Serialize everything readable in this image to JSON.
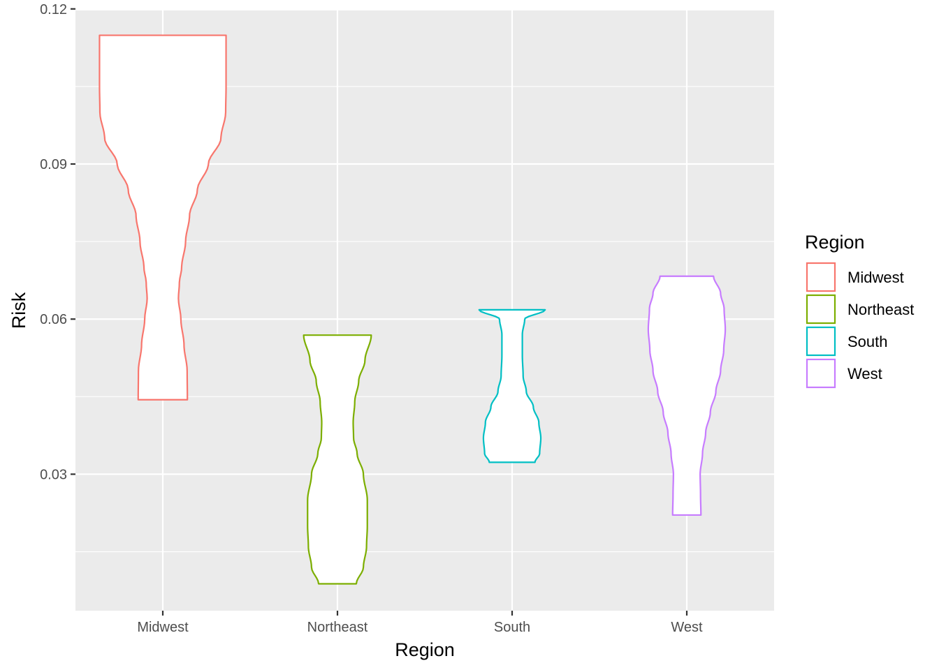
{
  "chart_data": {
    "type": "violin",
    "xlabel": "Region",
    "ylabel": "Risk",
    "ylim": [
      0.0036,
      0.1197
    ],
    "y_ticks": [
      0.03,
      0.06,
      0.09,
      0.12
    ],
    "y_tick_labels": [
      "0.03",
      "0.06",
      "0.09",
      "0.12"
    ],
    "categories": [
      "Midwest",
      "Northeast",
      "South",
      "West"
    ],
    "grid": true,
    "legend": {
      "title": "Region",
      "position": "right"
    },
    "series": [
      {
        "name": "Midwest",
        "color": "#F8766D",
        "min": 0.0444,
        "max": 0.1149,
        "profile": [
          [
            0.0444,
            0.313
          ],
          [
            0.05,
            0.31
          ],
          [
            0.055,
            0.27
          ],
          [
            0.06,
            0.23
          ],
          [
            0.064,
            0.199
          ],
          [
            0.067,
            0.211
          ],
          [
            0.07,
            0.24
          ],
          [
            0.075,
            0.29
          ],
          [
            0.08,
            0.34
          ],
          [
            0.085,
            0.44
          ],
          [
            0.09,
            0.58
          ],
          [
            0.095,
            0.74
          ],
          [
            0.1,
            0.8
          ],
          [
            0.105,
            0.805
          ],
          [
            0.11,
            0.805
          ],
          [
            0.1149,
            0.805
          ]
        ]
      },
      {
        "name": "Northeast",
        "color": "#7CAE00",
        "min": 0.0088,
        "max": 0.0569,
        "profile": [
          [
            0.0088,
            0.24
          ],
          [
            0.012,
            0.33
          ],
          [
            0.016,
            0.37
          ],
          [
            0.02,
            0.38
          ],
          [
            0.025,
            0.38
          ],
          [
            0.03,
            0.33
          ],
          [
            0.034,
            0.25
          ],
          [
            0.037,
            0.205
          ],
          [
            0.04,
            0.2
          ],
          [
            0.044,
            0.22
          ],
          [
            0.048,
            0.27
          ],
          [
            0.052,
            0.35
          ],
          [
            0.0569,
            0.43
          ]
        ]
      },
      {
        "name": "South",
        "color": "#00BFC4",
        "min": 0.0323,
        "max": 0.0618,
        "profile": [
          [
            0.0323,
            0.29
          ],
          [
            0.034,
            0.35
          ],
          [
            0.037,
            0.365
          ],
          [
            0.04,
            0.34
          ],
          [
            0.043,
            0.27
          ],
          [
            0.046,
            0.18
          ],
          [
            0.049,
            0.14
          ],
          [
            0.053,
            0.13
          ],
          [
            0.057,
            0.13
          ],
          [
            0.06,
            0.16
          ],
          [
            0.0618,
            0.42
          ]
        ]
      },
      {
        "name": "West",
        "color": "#C77CFF",
        "min": 0.0221,
        "max": 0.0683,
        "profile": [
          [
            0.0221,
            0.18
          ],
          [
            0.026,
            0.175
          ],
          [
            0.03,
            0.17
          ],
          [
            0.034,
            0.2
          ],
          [
            0.038,
            0.24
          ],
          [
            0.042,
            0.3
          ],
          [
            0.046,
            0.37
          ],
          [
            0.05,
            0.43
          ],
          [
            0.054,
            0.47
          ],
          [
            0.058,
            0.49
          ],
          [
            0.062,
            0.475
          ],
          [
            0.065,
            0.43
          ],
          [
            0.0683,
            0.34
          ]
        ]
      }
    ]
  }
}
